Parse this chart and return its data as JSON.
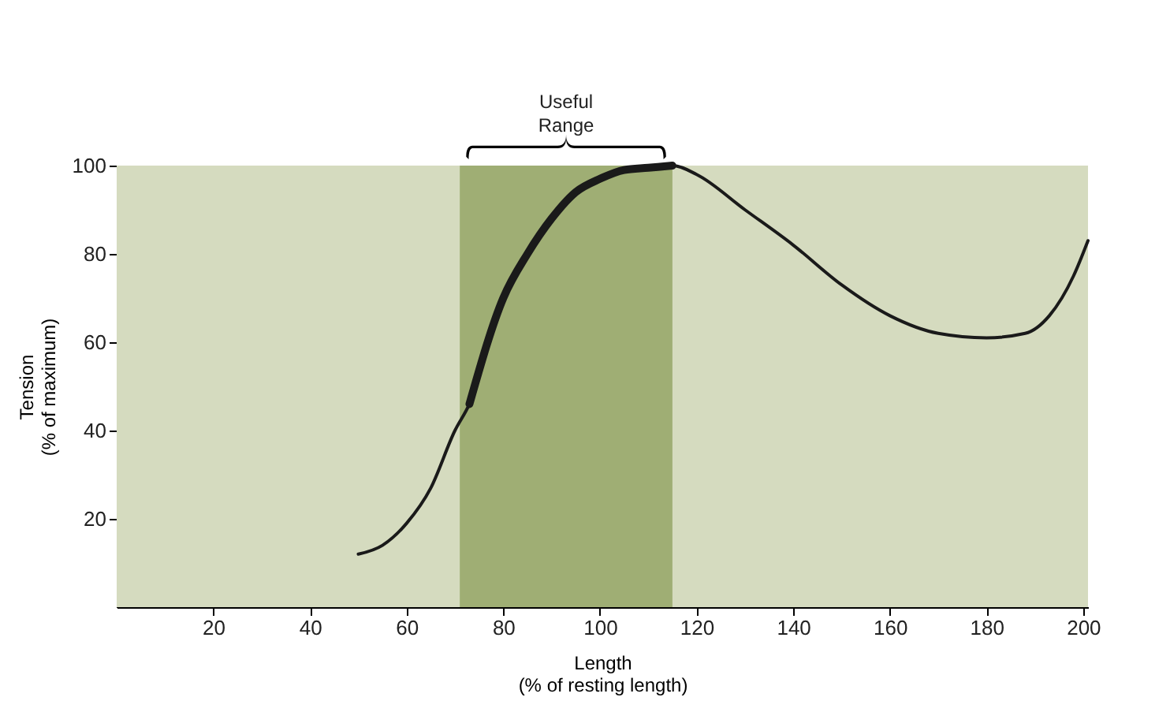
{
  "chart_data": {
    "type": "line",
    "xlabel": "Length\n(% of resting length)",
    "ylabel": "Tension\n(% of maximum)",
    "series": [
      {
        "color": "#1a1a1a",
        "x": [
          50,
          55,
          60,
          65,
          70,
          73,
          80,
          85,
          90,
          95,
          100,
          105,
          110,
          115,
          120,
          130,
          140,
          150,
          160,
          170,
          180,
          188,
          193,
          198,
          201
        ],
        "values": [
          12,
          14,
          19,
          27,
          40,
          46,
          70,
          80,
          88,
          94,
          97,
          99,
          99.5,
          100,
          98,
          90,
          82,
          73,
          66,
          62,
          61,
          62,
          66,
          75,
          83
        ]
      },
      {
        "color": "#1a1a1a",
        "x": [
          73,
          80,
          85,
          90,
          95,
          100,
          105,
          110,
          115
        ],
        "values": [
          46,
          70,
          80,
          88,
          94,
          97,
          99,
          99.5,
          100
        ]
      }
    ],
    "bands": [
      {
        "axis": "x",
        "from": 0,
        "to": 201,
        "color": "#d5dbbf"
      },
      {
        "axis": "x",
        "from": 71,
        "to": 115,
        "color": "#9fae74",
        "label": "Useful Range"
      }
    ],
    "xlim": [
      0,
      201
    ],
    "xticks": [
      20,
      40,
      60,
      80,
      100,
      120,
      140,
      160,
      180,
      200
    ],
    "ylim": [
      0,
      100
    ],
    "yticks": [
      20,
      40,
      60,
      80,
      100
    ],
    "marker": "none",
    "line_style": "solid"
  }
}
